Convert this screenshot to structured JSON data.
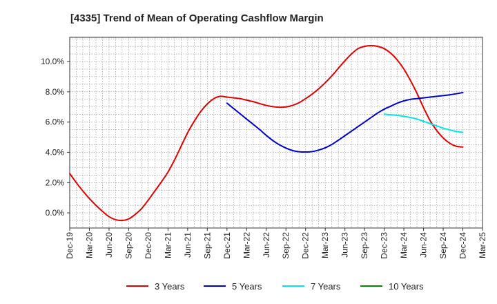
{
  "chart_data": {
    "type": "line",
    "title": "[4335]  Trend of Mean of Operating Cashflow Margin",
    "xlabel": "",
    "ylabel": "",
    "x_ticks": [
      "Dec-19",
      "Mar-20",
      "Jun-20",
      "Sep-20",
      "Dec-20",
      "Mar-21",
      "Jun-21",
      "Sep-21",
      "Dec-21",
      "Mar-22",
      "Jun-22",
      "Sep-22",
      "Dec-22",
      "Mar-23",
      "Jun-23",
      "Sep-23",
      "Dec-23",
      "Mar-24",
      "Jun-24",
      "Sep-24",
      "Dec-24",
      "Mar-25"
    ],
    "y_ticks": [
      "0.0%",
      "2.0%",
      "4.0%",
      "6.0%",
      "8.0%",
      "10.0%"
    ],
    "ylim": [
      -1.0,
      11.6
    ],
    "grid": true,
    "legend_position": "bottom",
    "series": [
      {
        "name": "3 Years",
        "color": "#e00000",
        "x": [
          "Dec-19",
          "Jan-20",
          "Feb-20",
          "Mar-20",
          "Apr-20",
          "May-20",
          "Jun-20",
          "Jul-20",
          "Aug-20",
          "Sep-20",
          "Oct-20",
          "Nov-20",
          "Dec-20",
          "Jan-21",
          "Feb-21",
          "Mar-21",
          "Apr-21",
          "May-21",
          "Jun-21",
          "Jul-21",
          "Aug-21",
          "Sep-21",
          "Oct-21",
          "Nov-21",
          "Dec-21",
          "Jan-22",
          "Feb-22",
          "Mar-22",
          "Apr-22",
          "May-22",
          "Jun-22",
          "Jul-22",
          "Aug-22",
          "Sep-22",
          "Oct-22",
          "Nov-22",
          "Dec-22",
          "Jan-23",
          "Feb-23",
          "Mar-23",
          "Apr-23",
          "May-23",
          "Jun-23",
          "Jul-23",
          "Aug-23",
          "Sep-23",
          "Oct-23",
          "Nov-23",
          "Dec-23",
          "Jan-24",
          "Feb-24",
          "Mar-24",
          "Apr-24",
          "May-24",
          "Jun-24",
          "Jul-24",
          "Aug-24",
          "Sep-24",
          "Oct-24",
          "Nov-24",
          "Dec-24"
        ],
        "values": [
          2.6,
          2.0,
          1.45,
          0.95,
          0.5,
          0.1,
          -0.25,
          -0.45,
          -0.5,
          -0.4,
          -0.1,
          0.3,
          0.85,
          1.45,
          2.05,
          2.7,
          3.5,
          4.4,
          5.3,
          6.05,
          6.7,
          7.2,
          7.55,
          7.7,
          7.65,
          7.6,
          7.55,
          7.45,
          7.35,
          7.22,
          7.1,
          7.02,
          6.98,
          7.0,
          7.1,
          7.28,
          7.55,
          7.85,
          8.2,
          8.6,
          9.05,
          9.55,
          10.05,
          10.5,
          10.85,
          11.0,
          11.05,
          11.0,
          10.85,
          10.55,
          10.1,
          9.5,
          8.75,
          7.9,
          6.95,
          6.1,
          5.45,
          4.95,
          4.6,
          4.4,
          4.35
        ]
      },
      {
        "name": "5 Years",
        "color": "#0000cc",
        "x": [
          "Dec-21",
          "Jan-22",
          "Feb-22",
          "Mar-22",
          "Apr-22",
          "May-22",
          "Jun-22",
          "Jul-22",
          "Aug-22",
          "Sep-22",
          "Oct-22",
          "Nov-22",
          "Dec-22",
          "Jan-23",
          "Feb-23",
          "Mar-23",
          "Apr-23",
          "May-23",
          "Jun-23",
          "Jul-23",
          "Aug-23",
          "Sep-23",
          "Oct-23",
          "Nov-23",
          "Dec-23",
          "Jan-24",
          "Feb-24",
          "Mar-24",
          "Apr-24",
          "May-24",
          "Jun-24",
          "Jul-24",
          "Aug-24",
          "Sep-24",
          "Oct-24",
          "Nov-24",
          "Dec-24"
        ],
        "values": [
          7.25,
          6.9,
          6.55,
          6.2,
          5.85,
          5.5,
          5.12,
          4.78,
          4.5,
          4.28,
          4.12,
          4.04,
          4.02,
          4.05,
          4.15,
          4.3,
          4.52,
          4.8,
          5.1,
          5.4,
          5.7,
          6.0,
          6.3,
          6.6,
          6.85,
          7.05,
          7.25,
          7.4,
          7.5,
          7.55,
          7.6,
          7.65,
          7.7,
          7.75,
          7.8,
          7.87,
          7.95
        ]
      },
      {
        "name": "7 Years",
        "color": "#00e5e5",
        "x": [
          "Dec-23",
          "Jan-24",
          "Feb-24",
          "Mar-24",
          "Apr-24",
          "May-24",
          "Jun-24",
          "Jul-24",
          "Aug-24",
          "Sep-24",
          "Oct-24",
          "Nov-24",
          "Dec-24"
        ],
        "values": [
          6.52,
          6.48,
          6.44,
          6.38,
          6.3,
          6.2,
          6.05,
          5.9,
          5.75,
          5.6,
          5.48,
          5.38,
          5.32
        ]
      },
      {
        "name": "10 Years",
        "color": "#008800",
        "x": [],
        "values": []
      }
    ]
  }
}
